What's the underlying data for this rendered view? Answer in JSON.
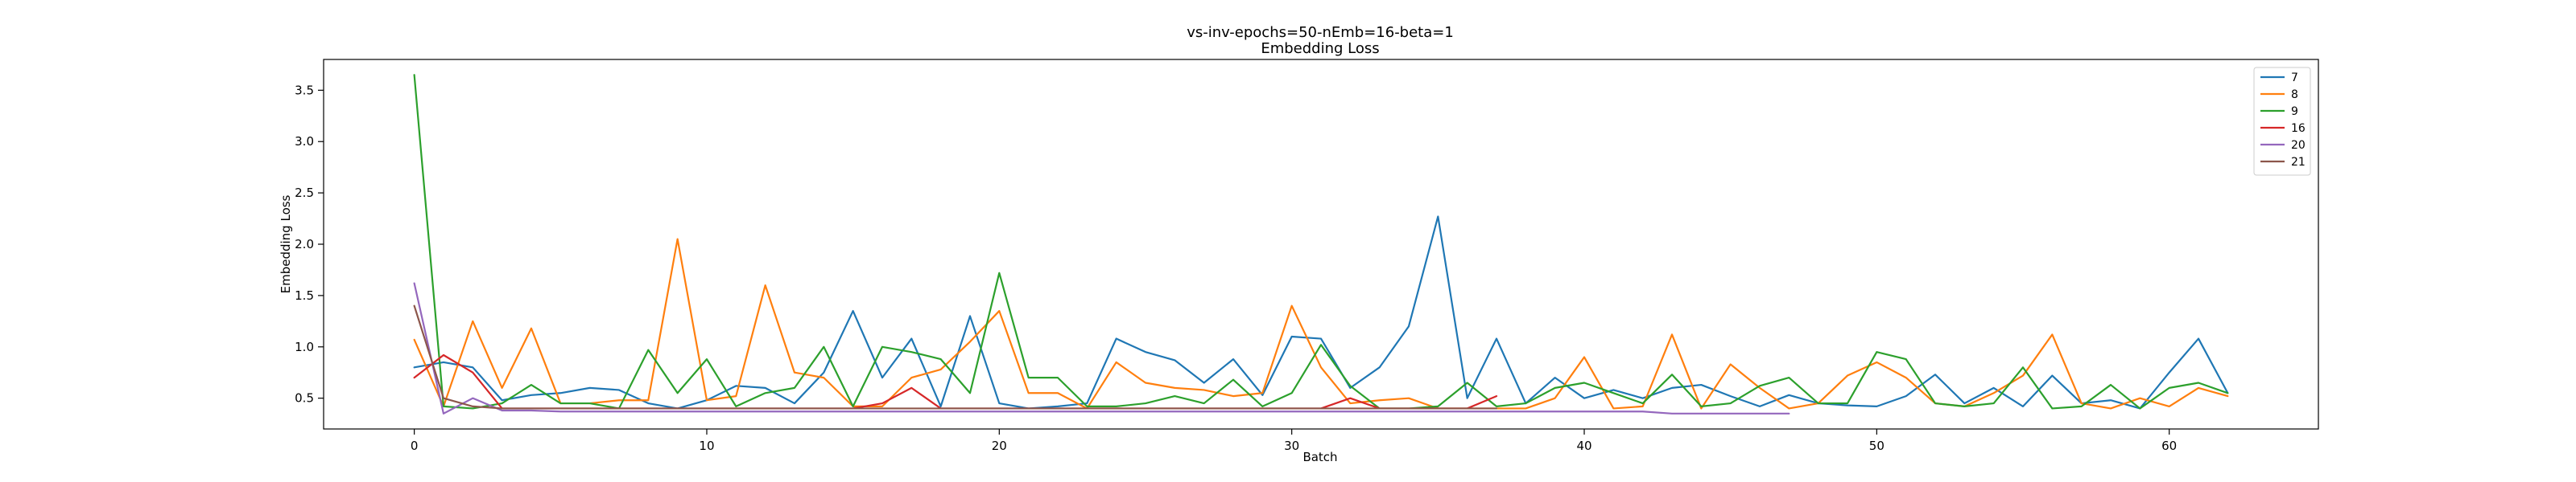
{
  "chart_data": {
    "type": "line",
    "title": "vs-inv-epochs=50-nEmb=16-beta=1",
    "subtitle": "Embedding Loss",
    "xlabel": "Batch",
    "ylabel": "Embedding Loss",
    "xlim": [
      -3.1,
      65.1
    ],
    "ylim": [
      0.2,
      3.8
    ],
    "xticks": [
      0,
      10,
      20,
      30,
      40,
      50,
      60
    ],
    "yticks": [
      0.5,
      1.0,
      1.5,
      2.0,
      2.5,
      3.0,
      3.5
    ],
    "grid": false,
    "legend_position": "top-right",
    "series": [
      {
        "name": "7",
        "color": "#1f77b4",
        "x_start": 0,
        "values": [
          0.8,
          0.85,
          0.8,
          0.48,
          0.53,
          0.55,
          0.6,
          0.58,
          0.45,
          0.4,
          0.48,
          0.62,
          0.6,
          0.45,
          0.75,
          1.35,
          0.7,
          1.08,
          0.42,
          1.3,
          0.45,
          0.4,
          0.42,
          0.45,
          1.08,
          0.95,
          0.87,
          0.65,
          0.88,
          0.53,
          1.1,
          1.08,
          0.6,
          0.8,
          1.2,
          2.27,
          0.5,
          1.08,
          0.45,
          0.7,
          0.5,
          0.58,
          0.5,
          0.6,
          0.63,
          0.52,
          0.42,
          0.53,
          0.45,
          0.43,
          0.42,
          0.52,
          0.73,
          0.45,
          0.6,
          0.42,
          0.72,
          0.45,
          0.48,
          0.4,
          0.75,
          1.08,
          0.55
        ]
      },
      {
        "name": "8",
        "color": "#ff7f0e",
        "x_start": 0,
        "values": [
          1.07,
          0.42,
          1.25,
          0.6,
          1.18,
          0.45,
          0.45,
          0.48,
          0.48,
          2.05,
          0.48,
          0.52,
          1.6,
          0.75,
          0.7,
          0.42,
          0.42,
          0.7,
          0.78,
          1.05,
          1.35,
          0.55,
          0.55,
          0.4,
          0.85,
          0.65,
          0.6,
          0.58,
          0.52,
          0.55,
          1.4,
          0.8,
          0.45,
          0.48,
          0.5,
          0.4,
          0.4,
          0.4,
          0.4,
          0.5,
          0.9,
          0.4,
          0.42,
          1.12,
          0.4,
          0.83,
          0.6,
          0.4,
          0.45,
          0.72,
          0.85,
          0.7,
          0.45,
          0.42,
          0.55,
          0.72,
          1.12,
          0.45,
          0.4,
          0.5,
          0.42,
          0.6,
          0.52
        ]
      },
      {
        "name": "9",
        "color": "#2ca02c",
        "x_start": 0,
        "values": [
          3.65,
          0.42,
          0.4,
          0.45,
          0.63,
          0.45,
          0.45,
          0.4,
          0.97,
          0.55,
          0.88,
          0.42,
          0.55,
          0.6,
          1.0,
          0.42,
          1.0,
          0.95,
          0.88,
          0.55,
          1.72,
          0.7,
          0.7,
          0.42,
          0.42,
          0.45,
          0.52,
          0.45,
          0.68,
          0.42,
          0.55,
          1.02,
          0.62,
          0.4,
          0.4,
          0.42,
          0.65,
          0.42,
          0.45,
          0.6,
          0.65,
          0.55,
          0.45,
          0.73,
          0.42,
          0.45,
          0.62,
          0.7,
          0.45,
          0.45,
          0.95,
          0.88,
          0.45,
          0.42,
          0.45,
          0.8,
          0.4,
          0.42,
          0.63,
          0.4,
          0.6,
          0.65,
          0.55
        ]
      },
      {
        "name": "16",
        "color": "#d62728",
        "x_start": 0,
        "values": [
          0.7,
          0.92,
          0.75,
          0.4,
          0.4,
          0.4,
          0.4,
          0.4,
          0.4,
          0.4,
          0.4,
          0.4,
          0.4,
          0.4,
          0.4,
          0.4,
          0.45,
          0.6,
          0.4,
          0.4,
          0.4,
          0.4,
          0.4,
          0.4,
          0.4,
          0.4,
          0.4,
          0.4,
          0.4,
          0.4,
          0.4,
          0.4,
          0.5,
          0.4,
          0.4,
          0.4,
          0.4,
          0.52
        ]
      },
      {
        "name": "20",
        "color": "#9467bd",
        "x_start": 0,
        "values": [
          1.62,
          0.35,
          0.5,
          0.38,
          0.38,
          0.37,
          0.37,
          0.37,
          0.37,
          0.37,
          0.37,
          0.37,
          0.37,
          0.37,
          0.37,
          0.37,
          0.37,
          0.37,
          0.37,
          0.37,
          0.37,
          0.37,
          0.37,
          0.37,
          0.37,
          0.37,
          0.37,
          0.37,
          0.37,
          0.37,
          0.37,
          0.37,
          0.37,
          0.37,
          0.37,
          0.37,
          0.37,
          0.37,
          0.37,
          0.37,
          0.37,
          0.37,
          0.37,
          0.35,
          0.35,
          0.35,
          0.35,
          0.35
        ]
      },
      {
        "name": "21",
        "color": "#8c564b",
        "x_start": 0,
        "values": [
          1.4,
          0.5,
          0.42,
          0.4,
          0.4,
          0.4,
          0.4,
          0.4,
          0.4,
          0.4,
          0.4,
          0.4,
          0.4,
          0.4,
          0.4,
          0.4,
          0.4,
          0.4,
          0.4,
          0.4,
          0.4,
          0.4,
          0.4,
          0.4,
          0.4,
          0.4,
          0.4,
          0.4,
          0.4,
          0.4,
          0.4,
          0.4,
          0.4,
          0.4,
          0.4,
          0.4,
          0.4,
          0.4
        ]
      }
    ]
  }
}
